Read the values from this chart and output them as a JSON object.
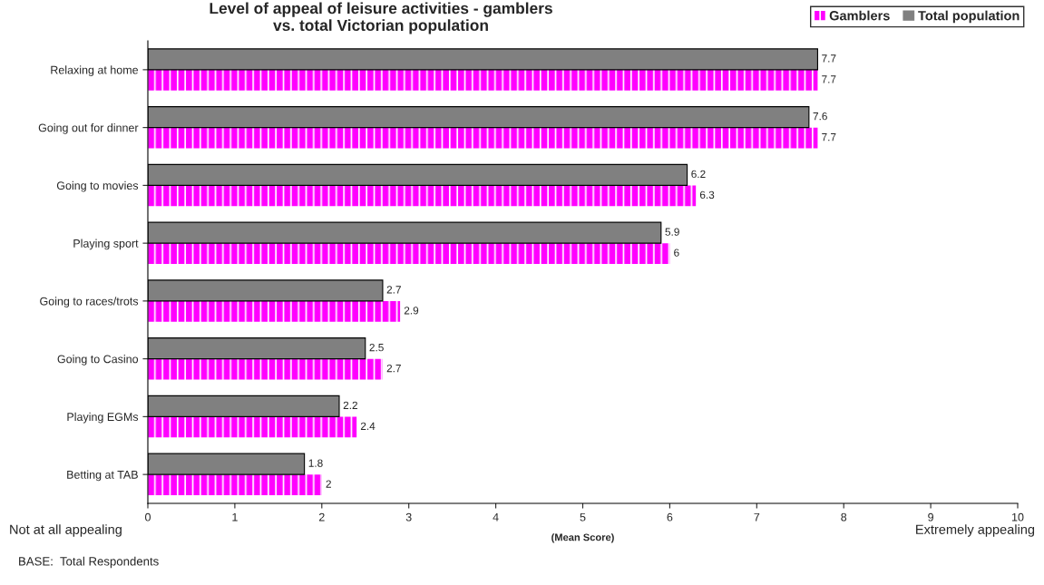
{
  "chart_data": {
    "type": "bar",
    "orientation": "horizontal",
    "title": "Level of appeal of leisure activities - gamblers\nvs. total Victorian population",
    "categories": [
      "Relaxing at home",
      "Going out for dinner",
      "Going to movies",
      "Playing sport",
      "Going to races/trots",
      "Going to Casino",
      "Playing EGMs",
      "Betting at TAB"
    ],
    "series": [
      {
        "name": "Gamblers",
        "color": "#ff00ff",
        "values": [
          7.7,
          7.7,
          6.3,
          6,
          2.9,
          2.7,
          2.4,
          2
        ]
      },
      {
        "name": "Total population",
        "color": "#808080",
        "values": [
          7.7,
          7.6,
          6.2,
          5.9,
          2.7,
          2.5,
          2.2,
          1.8
        ]
      }
    ],
    "xlim": [
      0,
      10
    ],
    "xticks": [
      0,
      1,
      2,
      3,
      4,
      5,
      6,
      7,
      8,
      9,
      10
    ],
    "xlabel": "(Mean Score)",
    "data_labels": true,
    "grid": false,
    "legend": "top right",
    "annotations": [
      "Not at all appealing",
      "Extremely appealing",
      "BASE:  Total Respondents"
    ]
  }
}
